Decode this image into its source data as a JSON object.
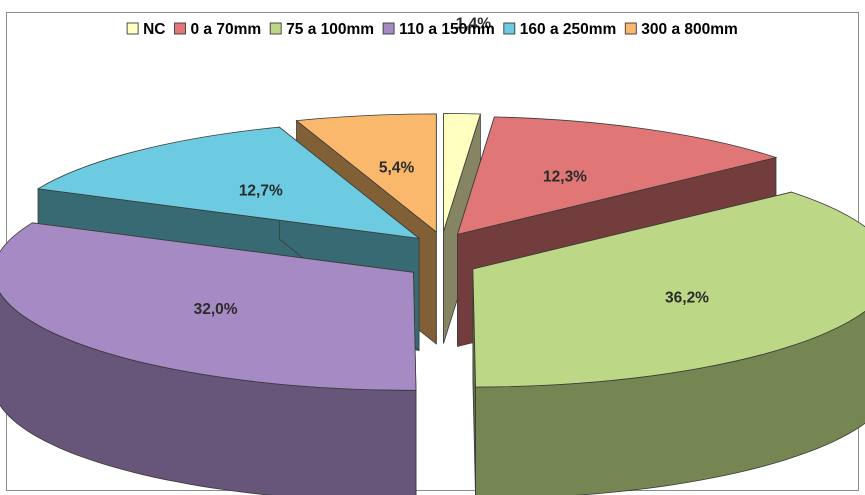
{
  "chart_data": {
    "type": "pie",
    "variant": "3d-exploded",
    "legend_position": "top",
    "unit": "%",
    "series": [
      {
        "name": "NC",
        "value": 1.4,
        "label": "1,4%",
        "color": "#ffffc0"
      },
      {
        "name": "0 a 70mm",
        "value": 12.3,
        "label": "12,3%",
        "color": "#e07676"
      },
      {
        "name": "75 a 100mm",
        "value": 36.2,
        "label": "36,2%",
        "color": "#bcd886"
      },
      {
        "name": "110 a 150mm",
        "value": 32.0,
        "label": "32,0%",
        "color": "#a68ac4"
      },
      {
        "name": "160 a 250mm",
        "value": 12.7,
        "label": "12,7%",
        "color": "#6ccbe0"
      },
      {
        "name": "300 a 800mm",
        "value": 5.4,
        "label": "5,4%",
        "color": "#f9b86c"
      }
    ]
  }
}
